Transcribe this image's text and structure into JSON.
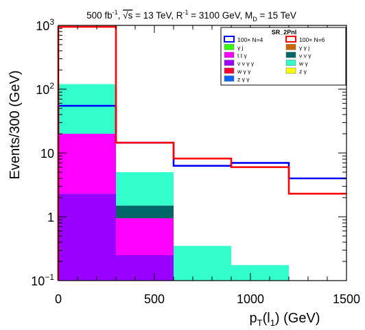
{
  "chart_data": {
    "type": "bar",
    "subtype": "stacked-histogram-log",
    "title_parts": {
      "a": "500 fb",
      "a_sup": "-1",
      "b": ", ",
      "sqrt": "√s",
      "c": " = 13 TeV, R",
      "c_sup": "-1",
      "d": " = 3100 GeV, M",
      "d_sub": "D",
      "e": " = 15 TeV"
    },
    "xlabel_parts": {
      "p": "p",
      "t": "T",
      "mid": "(l",
      "one": "1",
      "end": ") (GeV)"
    },
    "ylabel": "Events/300 (GeV)",
    "xlim": [
      0,
      1500
    ],
    "ylim": [
      0.1,
      1000
    ],
    "yscale": "log",
    "x_ticks": [
      {
        "value": 0,
        "label": "0"
      },
      {
        "value": 500,
        "label": "500"
      },
      {
        "value": 1000,
        "label": "1000"
      },
      {
        "value": 1500,
        "label": "1500"
      }
    ],
    "y_ticks": [
      {
        "value": 0.1,
        "label": "10",
        "sup": "−1"
      },
      {
        "value": 1,
        "label": "1",
        "sup": ""
      },
      {
        "value": 10,
        "label": "10",
        "sup": ""
      },
      {
        "value": 100,
        "label": "10",
        "sup": "2"
      },
      {
        "value": 1000,
        "label": "10",
        "sup": "3"
      }
    ],
    "bin_edges": [
      0,
      300,
      600,
      900,
      1200,
      1500
    ],
    "stack": [
      {
        "name": "ν ν γ γ",
        "color": "#9900ff",
        "values": [
          2.3,
          0.25,
          0,
          0,
          0
        ]
      },
      {
        "name": "t t γ",
        "color": "#ff00ff",
        "values": [
          17.7,
          0.7,
          0,
          0,
          0
        ]
      },
      {
        "name": "ν ν γ",
        "color": "#006666",
        "values": [
          0,
          0.55,
          0,
          0,
          0
        ]
      },
      {
        "name": "w γ",
        "color": "#33ffcc",
        "values": [
          100,
          3.5,
          0.35,
          0.175,
          0.1
        ]
      }
    ],
    "signals": [
      {
        "name": "100× N=4",
        "color": "#0000ff",
        "values": [
          55,
          14.5,
          6.3,
          7.0,
          4.0
        ]
      },
      {
        "name": "100× N=6",
        "color": "#ff0000",
        "values": [
          950,
          14.5,
          8.2,
          6.0,
          2.3
        ]
      }
    ],
    "legend": {
      "title": "SR_2Pnl",
      "position": "top-right",
      "entries": [
        {
          "label": "100× N=4",
          "color": "#0000ff",
          "style": "line"
        },
        {
          "label": "100× N=6",
          "color": "#ff0000",
          "style": "line"
        },
        {
          "label": "γ j",
          "color": "#33ff00",
          "style": "fill"
        },
        {
          "label": "γ γ j",
          "color": "#cc6600",
          "style": "fill"
        },
        {
          "label": "t t γ",
          "color": "#ff00ff",
          "style": "fill"
        },
        {
          "label": "ν ν γ",
          "color": "#006666",
          "style": "fill"
        },
        {
          "label": "ν ν γ γ",
          "color": "#9900ff",
          "style": "fill"
        },
        {
          "label": "w γ",
          "color": "#33ffcc",
          "style": "fill"
        },
        {
          "label": "w γ γ",
          "color": "#ff0033",
          "style": "fill"
        },
        {
          "label": "z γ",
          "color": "#ffff00",
          "style": "fill"
        },
        {
          "label": "z γ γ",
          "color": "#0066ff",
          "style": "fill"
        }
      ]
    }
  }
}
